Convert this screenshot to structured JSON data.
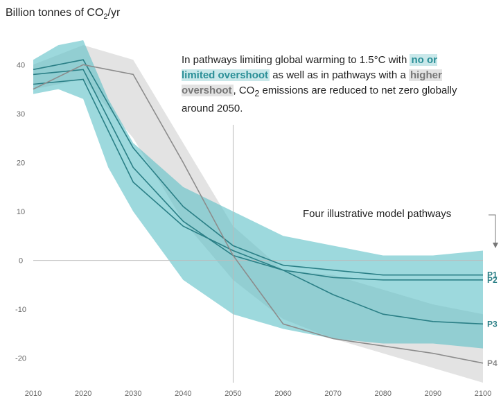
{
  "chart_data": {
    "type": "area",
    "ylabel_prefix": "Billion tonnes of CO",
    "ylabel_sub": "2",
    "ylabel_suffix": "/yr",
    "annotation": {
      "part1": "In pathways limiting global warming to 1.5°C with ",
      "highlight1": "no or limited overshoot",
      "part2": " as well as in pathways with a ",
      "highlight2": "higher overshoot",
      "part3": ", CO",
      "sub": "2",
      "part4": " emissions are reduced to net zero globally around 2050."
    },
    "pathways_label": "Four illustrative model pathways",
    "xlim": [
      2010,
      2100
    ],
    "ylim": [
      -25,
      45
    ],
    "x_ticks": [
      2010,
      2020,
      2030,
      2040,
      2050,
      2060,
      2070,
      2080,
      2090,
      2100
    ],
    "y_ticks": [
      40,
      30,
      20,
      10,
      0,
      -10,
      -20
    ],
    "colors": {
      "blue_band": "#5bbfc7",
      "grey_band": "#d9d9d9",
      "blue_line": "#2a7f86",
      "grey_line": "#8c8c8c",
      "axis": "#bbbbbb"
    },
    "ranges": {
      "grey_band": {
        "x": [
          2010,
          2020,
          2030,
          2040,
          2050,
          2060,
          2070,
          2080,
          2090,
          2100
        ],
        "upper": [
          40,
          44,
          41,
          24,
          7,
          -2,
          -3,
          -6,
          -9,
          -11
        ],
        "lower": [
          35,
          37,
          25,
          8,
          -4,
          -12,
          -16,
          -19,
          -22,
          -25
        ]
      },
      "blue_band": {
        "x": [
          2010,
          2015,
          2020,
          2025,
          2030,
          2040,
          2050,
          2060,
          2070,
          2080,
          2090,
          2100
        ],
        "upper": [
          41,
          44,
          45,
          33,
          24,
          15,
          10,
          5,
          3,
          1,
          1,
          2
        ],
        "lower": [
          34,
          35,
          33,
          19,
          10,
          -4,
          -11,
          -14,
          -16,
          -17,
          -17,
          -18
        ]
      }
    },
    "series": [
      {
        "name": "P1",
        "x": [
          2010,
          2020,
          2030,
          2040,
          2050,
          2060,
          2070,
          2080,
          2090,
          2100
        ],
        "values": [
          39,
          41,
          23,
          11,
          3,
          -1,
          -2,
          -3,
          -3,
          -3
        ]
      },
      {
        "name": "P2",
        "x": [
          2010,
          2020,
          2030,
          2040,
          2050,
          2060,
          2070,
          2080,
          2090,
          2100
        ],
        "values": [
          38,
          39,
          19,
          8,
          1,
          -2,
          -3.5,
          -4,
          -4,
          -4
        ]
      },
      {
        "name": "P3",
        "x": [
          2010,
          2020,
          2030,
          2040,
          2050,
          2060,
          2070,
          2080,
          2090,
          2100
        ],
        "values": [
          36,
          37,
          16,
          7,
          2,
          -2,
          -7,
          -11,
          -12.5,
          -13
        ]
      },
      {
        "name": "P4",
        "x": [
          2010,
          2020,
          2030,
          2040,
          2050,
          2060,
          2070,
          2080,
          2090,
          2100
        ],
        "values": [
          35,
          40,
          38,
          20,
          1,
          -13,
          -16,
          -17.5,
          -19,
          -21
        ]
      }
    ]
  }
}
